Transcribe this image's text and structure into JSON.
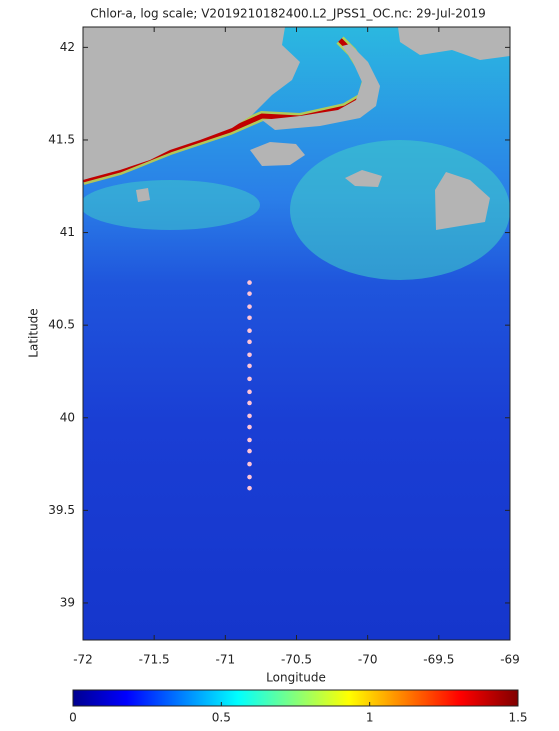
{
  "chart_data": {
    "type": "scatter",
    "title": "Chlor-a, log scale; V2019210182400.L2_JPSS1_OC.nc: 29-Jul-2019",
    "xlabel": "Longitude",
    "ylabel": "Latitude",
    "xlim": [
      -72,
      -69
    ],
    "ylim": [
      38.8,
      42.11
    ],
    "xticks": [
      -72,
      -71.5,
      -71,
      -70.5,
      -70,
      -69.5,
      -69
    ],
    "yticks": [
      39,
      39.5,
      40,
      40.5,
      41,
      41.5,
      42
    ],
    "series": [
      {
        "color": "#ffc4d6",
        "x": [
          -70.83,
          -70.83,
          -70.83,
          -70.83,
          -70.83,
          -70.83,
          -70.83,
          -70.83,
          -70.83,
          -70.83,
          -70.83,
          -70.83,
          -70.83,
          -70.83,
          -70.83,
          -70.83,
          -70.83,
          -70.83
        ],
        "y": [
          40.73,
          40.67,
          40.6,
          40.54,
          40.47,
          40.41,
          40.34,
          40.28,
          40.21,
          40.14,
          40.08,
          40.01,
          39.95,
          39.88,
          39.82,
          39.75,
          39.68,
          39.62
        ]
      }
    ],
    "colorbar": {
      "lim": [
        0,
        1.5
      ],
      "ticks": [
        0,
        0.5,
        1,
        1.5
      ]
    }
  }
}
